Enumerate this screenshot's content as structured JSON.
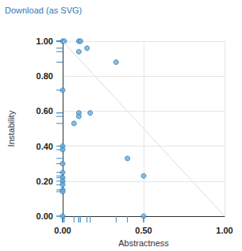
{
  "header": {
    "link": "Download (as SVG)"
  },
  "chart_data": {
    "type": "scatter",
    "x_label": "Abstractness",
    "y_label": "Instability",
    "color": "#6aaedb",
    "marker": "circle",
    "grid": true,
    "xlim": [
      0,
      1
    ],
    "ylim": [
      0,
      1
    ],
    "xticks": [
      {
        "value": 0,
        "label": "0.00"
      },
      {
        "value": 0.5,
        "label": "0.50"
      },
      {
        "value": 1,
        "label": "1.00"
      }
    ],
    "yticks": [
      {
        "value": 0,
        "label": "0.00"
      },
      {
        "value": 0.2,
        "label": "0.20"
      },
      {
        "value": 0.4,
        "label": "0.40"
      },
      {
        "value": 0.6,
        "label": "0.60"
      },
      {
        "value": 0.8,
        "label": "0.80"
      },
      {
        "value": 1,
        "label": "1.00"
      }
    ],
    "x": [
      0,
      0.01,
      0.1,
      0.11,
      0.1,
      0.15,
      0.33,
      0,
      0.1,
      0.1,
      0.17,
      0.07,
      0,
      0,
      0,
      0,
      0,
      0,
      0,
      0,
      0,
      0,
      0.4,
      0.5,
      0.5
    ],
    "values": [
      1.0,
      1.0,
      1.0,
      1.0,
      0.94,
      0.96,
      0.88,
      0.72,
      0.59,
      0.57,
      0.59,
      0.53,
      0.4,
      0.38,
      0.3,
      0.25,
      0.22,
      0.2,
      0.18,
      0.15,
      0.14,
      0.0,
      0.33,
      0.23,
      0.0
    ]
  }
}
